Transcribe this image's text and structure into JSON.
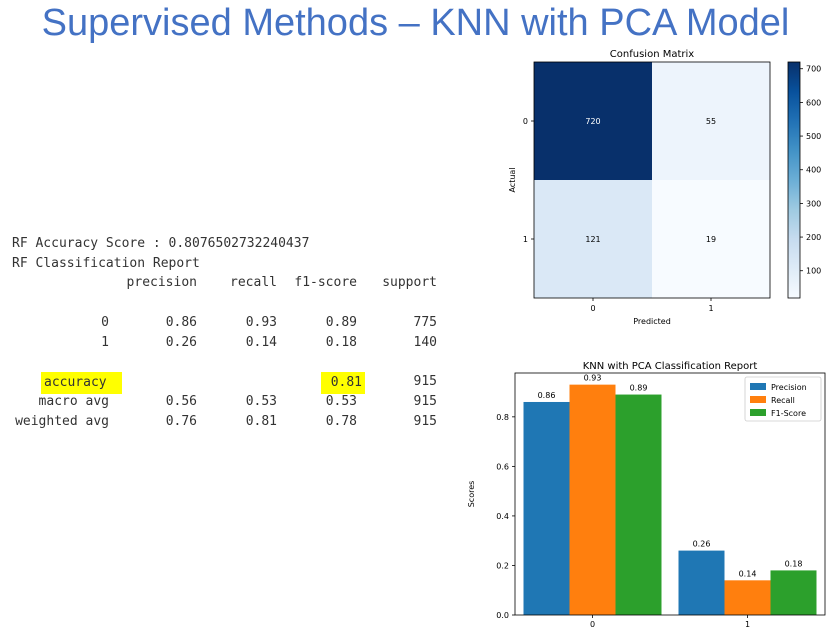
{
  "slide_title": "Supervised Methods – KNN with PCA Model",
  "report": {
    "accuracy_line": "RF Accuracy Score : 0.8076502732240437",
    "report_title": "RF Classification Report",
    "headers": [
      "precision",
      "recall",
      "f1-score",
      "support"
    ],
    "class_rows": [
      {
        "label": "0",
        "precision": "0.86",
        "recall": "0.93",
        "f1": "0.89",
        "support": "775"
      },
      {
        "label": "1",
        "precision": "0.26",
        "recall": "0.14",
        "f1": "0.18",
        "support": "140"
      }
    ],
    "accuracy_row": {
      "label": "accuracy",
      "f1": "0.81",
      "support": "915"
    },
    "avg_rows": [
      {
        "label": "macro avg",
        "precision": "0.56",
        "recall": "0.53",
        "f1": "0.53",
        "support": "915"
      },
      {
        "label": "weighted avg",
        "precision": "0.76",
        "recall": "0.81",
        "f1": "0.78",
        "support": "915"
      }
    ],
    "highlight_color": "#ffff00"
  },
  "chart_data": [
    {
      "type": "heatmap",
      "title": "Confusion Matrix",
      "xlabel": "Predicted",
      "ylabel": "Actual",
      "x_categories": [
        "0",
        "1"
      ],
      "y_categories": [
        "0",
        "1"
      ],
      "values": [
        [
          720,
          55
        ],
        [
          121,
          19
        ]
      ],
      "colormap": "Blues",
      "colorbar_ticks": [
        100,
        200,
        300,
        400,
        500,
        600,
        700
      ],
      "colorbar_range": [
        19,
        720
      ]
    },
    {
      "type": "bar",
      "title": "KNN with PCA Classification Report",
      "xlabel": "",
      "ylabel": "Scores",
      "categories": [
        "0",
        "1"
      ],
      "series": [
        {
          "name": "Precision",
          "values": [
            0.86,
            0.26
          ],
          "color": "#1f77b4"
        },
        {
          "name": "Recall",
          "values": [
            0.93,
            0.14
          ],
          "color": "#ff7f0e"
        },
        {
          "name": "F1-Score",
          "values": [
            0.89,
            0.18
          ],
          "color": "#2ca02c"
        }
      ],
      "ylim": [
        0,
        0.977
      ],
      "yticks": [
        "0.0",
        "0.2",
        "0.4",
        "0.6",
        "0.8"
      ],
      "legend": "top-right"
    }
  ]
}
